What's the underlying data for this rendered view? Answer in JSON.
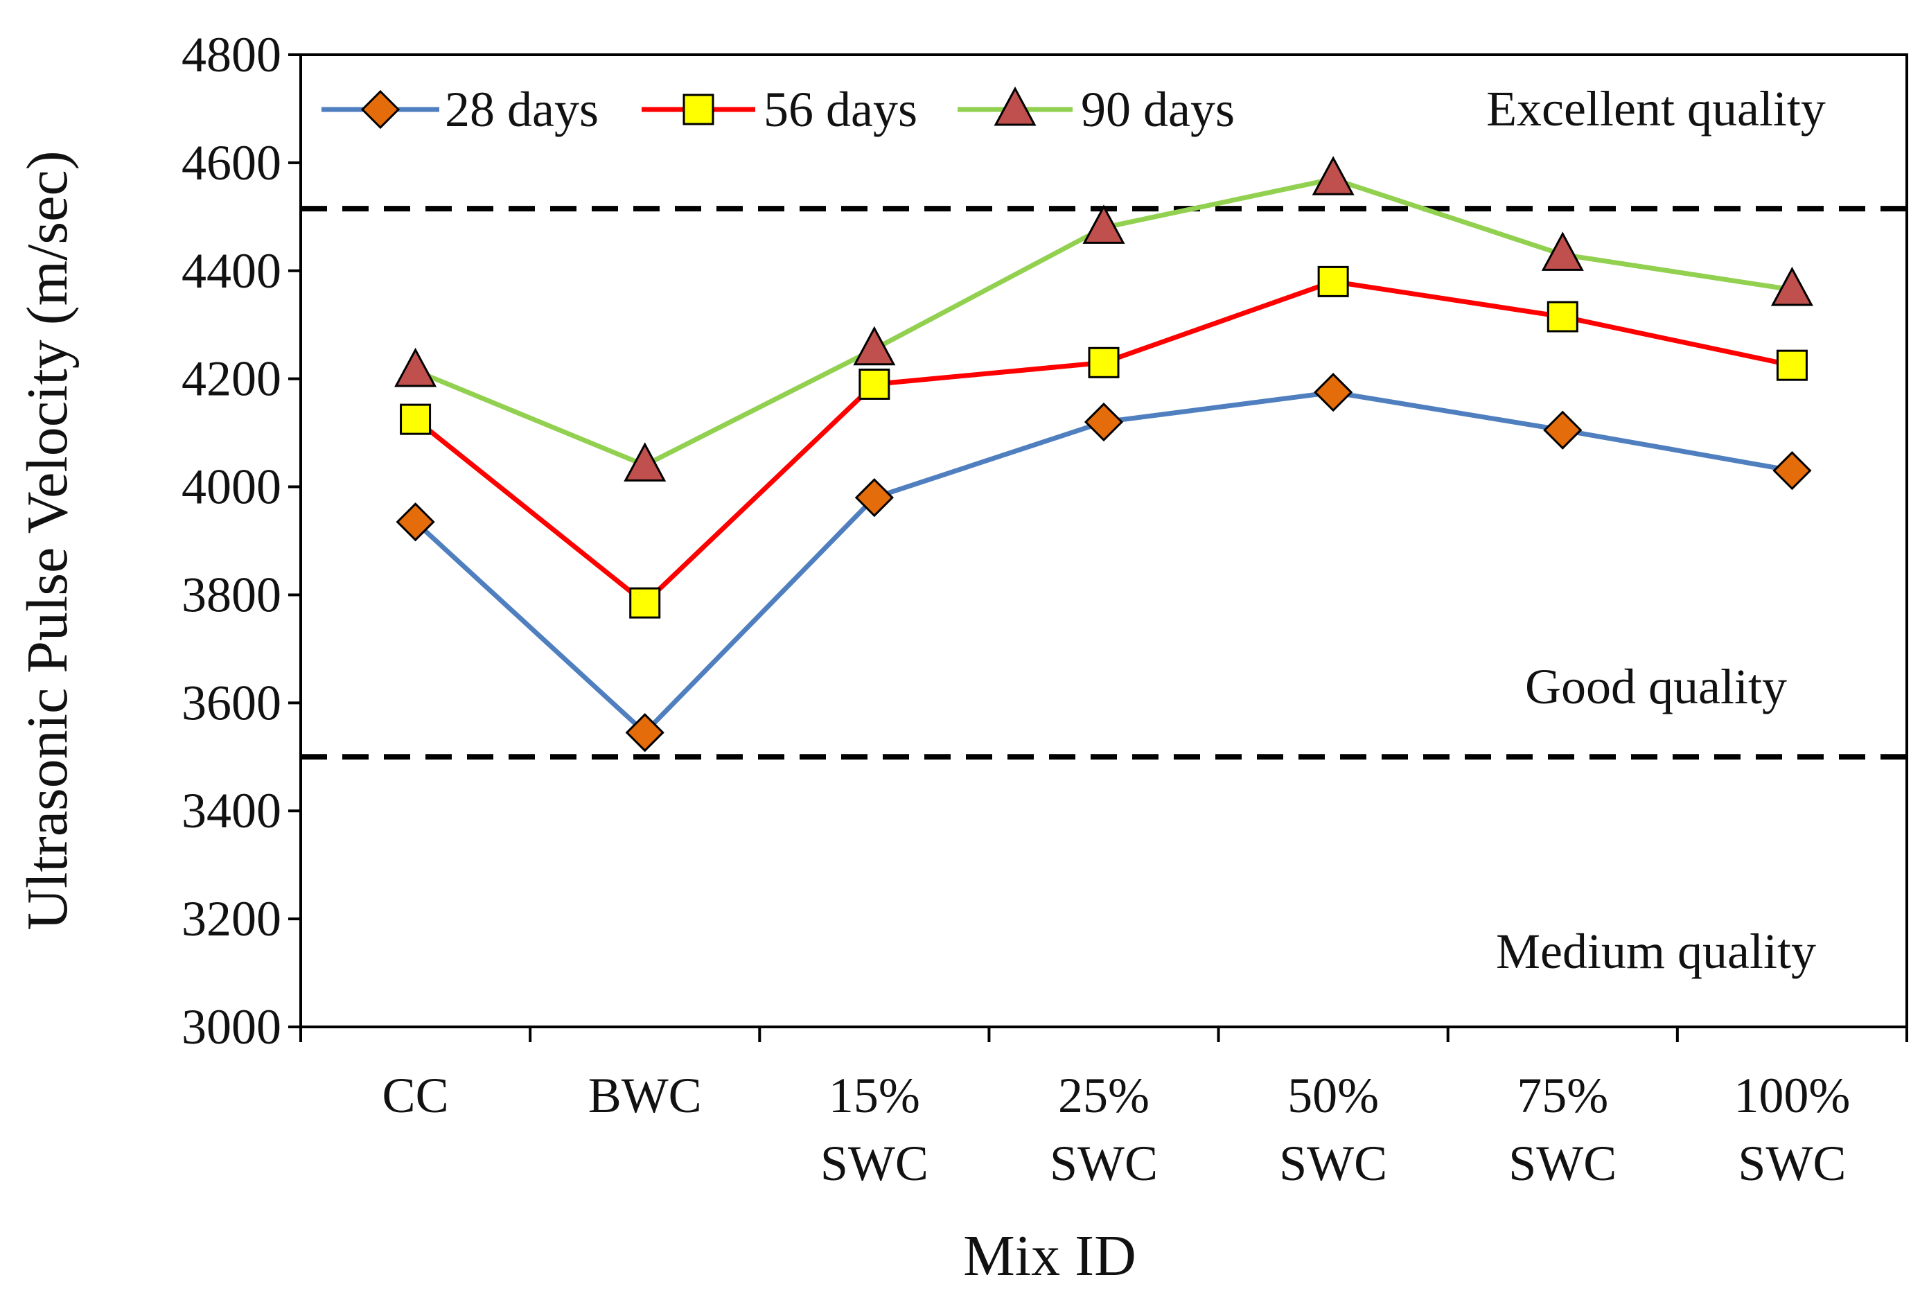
{
  "chart_data": {
    "type": "line",
    "title": "",
    "xlabel": "Mix ID",
    "ylabel": "Ultrasonic Pulse Velocity (m/sec)",
    "ylim": [
      3000,
      4800
    ],
    "yticks": [
      3000,
      3200,
      3400,
      3600,
      3800,
      4000,
      4200,
      4400,
      4600,
      4800
    ],
    "grid": false,
    "legend_position": "top-left",
    "categories": [
      [
        "CC"
      ],
      [
        "BWC"
      ],
      [
        "15%",
        "SWC"
      ],
      [
        "25%",
        "SWC"
      ],
      [
        "50%",
        "SWC"
      ],
      [
        "75%",
        "SWC"
      ],
      [
        "100%",
        "SWC"
      ]
    ],
    "series": [
      {
        "name": "28 days",
        "color": "#4f7fbf",
        "marker": "diamond",
        "marker_color": "#e46c0a",
        "values": [
          3935,
          3545,
          3980,
          4120,
          4175,
          4105,
          4030
        ]
      },
      {
        "name": "56 days",
        "color": "#ff0000",
        "marker": "square",
        "marker_color": "#ffff00",
        "values": [
          4125,
          3785,
          4190,
          4230,
          4380,
          4315,
          4225
        ]
      },
      {
        "name": "90 days",
        "color": "#92d050",
        "marker": "triangle",
        "marker_color": "#c0504d",
        "values": [
          4215,
          4040,
          4255,
          4480,
          4570,
          4430,
          4365
        ]
      }
    ],
    "reference_lines": [
      {
        "value": 4515,
        "style": "dashed",
        "color": "#000000"
      },
      {
        "value": 3500,
        "style": "dashed",
        "color": "#000000"
      }
    ],
    "annotations": [
      {
        "text": "Excellent quality",
        "y": 4700
      },
      {
        "text": "Good quality",
        "y": 3630
      },
      {
        "text": "Medium quality",
        "y": 3140
      }
    ]
  }
}
